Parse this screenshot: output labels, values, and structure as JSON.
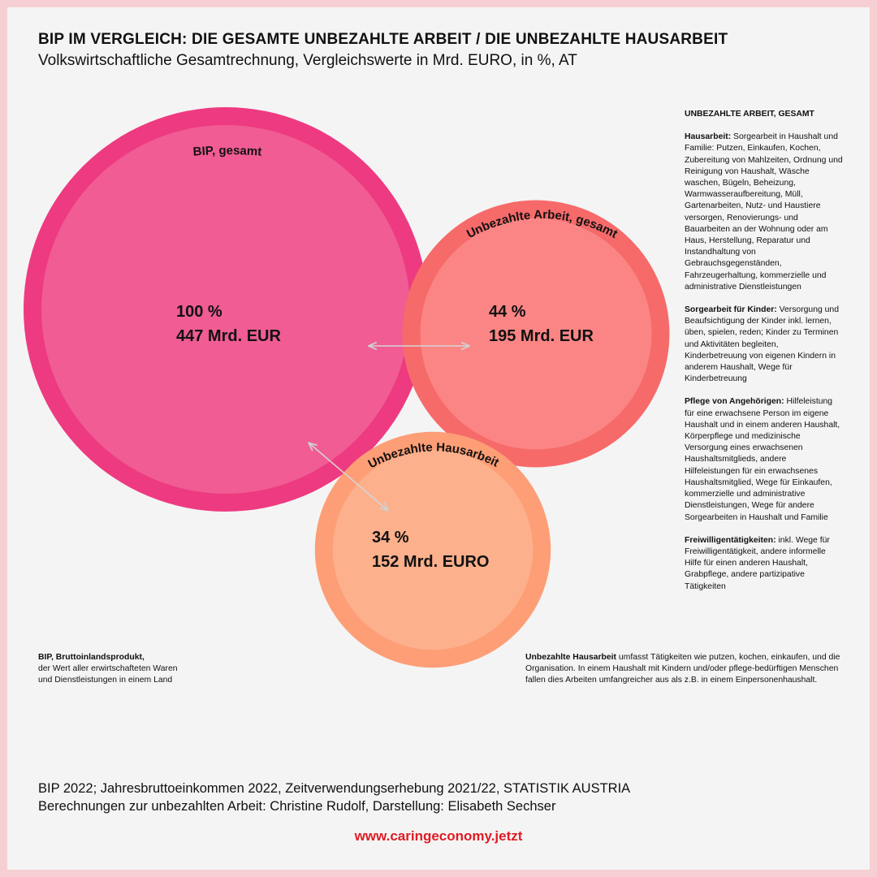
{
  "header": {
    "title": "BIP IM VERGLEICH: DIE GESAMTE UNBEZAHLTE ARBEIT / DIE UNBEZAHLTE HAUSARBEIT",
    "subtitle": "Volkswirtschaftliche Gesamtrechnung, Vergleichswerte in Mrd. EURO, in %, AT"
  },
  "chart_data": {
    "type": "bubble",
    "series": [
      {
        "name": "BIP, gesamt",
        "percent": 100,
        "percent_label": "100 %",
        "value": 447,
        "value_label": "447 Mrd. EUR",
        "color": "#ee3a80",
        "fill": "#f05c93"
      },
      {
        "name": "Unbezahlte Arbeit, gesamt",
        "percent": 44,
        "percent_label": "44 %",
        "value": 195,
        "value_label": "195 Mrd. EUR",
        "color": "#f76a6a",
        "fill": "#fb8585"
      },
      {
        "name": "Unbezahlte Hausarbeit",
        "percent": 34,
        "percent_label": "34 %",
        "value": 152,
        "value_label": "152 Mrd. EURO",
        "color": "#fd9e76",
        "fill": "#fdb08c"
      }
    ]
  },
  "definitions": {
    "heading": "UNBEZAHLTE ARBEIT, GESAMT",
    "items": [
      {
        "term": "Hausarbeit:",
        "text": " Sorgearbeit in Haushalt und Familie: Putzen, Einkaufen, Kochen, Zubereitung von Mahlzeiten, Ordnung und Reinigung von Haushalt, Wäsche waschen, Bügeln, Beheizung, Warmwasseraufbereitung, Müll, Gartenarbeiten, Nutz- und Haustiere versorgen, Renovierungs- und Bauarbeiten an der Wohnung oder am Haus, Herstellung, Reparatur und Instandhaltung von Gebrauchsgegenständen, Fahrzeugerhaltung, kommerzielle und administrative Dienstleistungen"
      },
      {
        "term": "Sorgearbeit für Kinder:",
        "text": " Versorgung und Beaufsichtigung der Kinder inkl. lernen, üben, spielen, reden; Kinder zu Terminen und Aktivitäten begleiten, Kinderbetreuung von eigenen Kindern in anderem Haushalt, Wege für Kinderbetreuung"
      },
      {
        "term": "Pflege von Angehörigen:",
        "text": " Hilfeleistung für eine erwachsene Person im eigene Haushalt und in einem anderen Haushalt, Körperpflege und medizinische Versorgung eines erwachsenen Haushaltsmitglieds, andere Hilfeleistungen für ein erwachsenes Haushaltsmitglied, Wege für Einkaufen, kommerzielle und administrative Dienstleistungen, Wege für andere Sorgearbeiten in Haushalt und Familie"
      },
      {
        "term": "Freiwilligentätigkeiten:",
        "text": " inkl. Wege für Freiwilligentätigkeit, andere informelle Hilfe für einen anderen Haushalt, Grabpflege, andere partizipative Tätigkeiten"
      }
    ]
  },
  "notes": {
    "bip": {
      "term": "BIP, Bruttoinlandsprodukt,",
      "text": "der Wert aller erwirtschafteten Waren und Dienstleistungen in einem Land"
    },
    "hausarbeit": {
      "term": "Unbezahlte Hausarbeit",
      "text": " umfasst Tätigkeiten wie putzen, kochen, einkaufen, und die Organisation. In einem Haushalt mit Kindern und/oder pflege-bedürftigen Menschen fallen dies Arbeiten umfangreicher aus als z.B. in einem Einpersonenhaushalt."
    }
  },
  "footer": {
    "source_line1": "BIP 2022; Jahresbruttoeinkommen 2022, Zeitverwendungserhebung 2021/22, STATISTIK AUSTRIA",
    "source_line2": "Berechnungen zur unbezahlten Arbeit: Christine Rudolf, Darstellung: Elisabeth Sechser",
    "website": "www.caringeconomy.jetzt"
  }
}
